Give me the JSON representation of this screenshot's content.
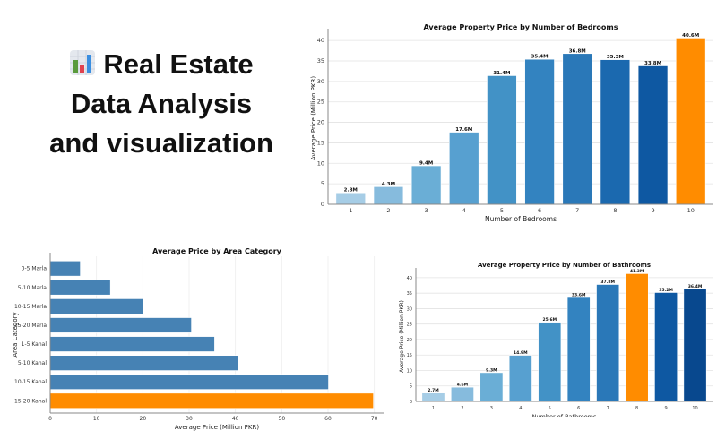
{
  "headline": {
    "icon": "bar-chart-emoji-icon",
    "line1": "Real Estate",
    "line2": "Data Analysis",
    "line3": "and visualization"
  },
  "chart_data": [
    {
      "id": "bedrooms",
      "type": "bar",
      "orientation": "vertical",
      "title": "Average Property Price by Number of Bedrooms",
      "xlabel": "Number of Bedrooms",
      "ylabel": "Average Price (Million PKR)",
      "categories": [
        "1",
        "2",
        "3",
        "4",
        "5",
        "6",
        "7",
        "8",
        "9",
        "10"
      ],
      "values": [
        2.8,
        4.3,
        9.4,
        17.6,
        31.4,
        35.4,
        36.8,
        35.3,
        33.8,
        40.6
      ],
      "data_labels": [
        "2.8M",
        "4.3M",
        "9.4M",
        "17.6M",
        "31.4M",
        "35.4M",
        "36.8M",
        "35.3M",
        "33.8M",
        "40.6M"
      ],
      "ylim": [
        0,
        42
      ],
      "yticks": [
        0,
        5,
        10,
        15,
        20,
        25,
        30,
        35,
        40
      ],
      "grid": true,
      "colors": [
        "#a6cde6",
        "#86bbdd",
        "#6aaed6",
        "#57a0d0",
        "#4292c6",
        "#3383c0",
        "#2a78b8",
        "#1b69af",
        "#0e58a2",
        "#ff8c00"
      ],
      "highlight_color": "#ff8c00"
    },
    {
      "id": "area",
      "type": "bar",
      "orientation": "horizontal",
      "title": "Average Price by Area Category",
      "xlabel": "Average Price (Million PKR)",
      "ylabel": "Area Category",
      "categories": [
        "0-5 Marla",
        "5-10 Marla",
        "10-15 Marla",
        "15-20 Marla",
        "1-5 Kanal",
        "5-10 Kanal",
        "10-15 Kanal",
        "15-20 Kanal"
      ],
      "values": [
        6.5,
        13,
        20.1,
        30.5,
        35.5,
        40.6,
        60.1,
        69.8
      ],
      "xlim": [
        0,
        72
      ],
      "xticks": [
        0,
        10,
        20,
        30,
        40,
        50,
        60,
        70
      ],
      "grid": true,
      "colors": [
        "#4682b4",
        "#4682b4",
        "#4682b4",
        "#4682b4",
        "#4682b4",
        "#4682b4",
        "#4682b4",
        "#ff8c00"
      ],
      "highlight_color": "#ff8c00"
    },
    {
      "id": "bathrooms",
      "type": "bar",
      "orientation": "vertical",
      "title": "Average Property Price by Number of Bathrooms",
      "xlabel": "Number of Bathrooms",
      "ylabel": "Average Price (Million PKR)",
      "categories": [
        "1",
        "2",
        "3",
        "4",
        "5",
        "6",
        "7",
        "8",
        "9",
        "10"
      ],
      "values": [
        2.7,
        4.6,
        9.3,
        14.9,
        25.6,
        33.6,
        37.8,
        41.3,
        35.2,
        36.4
      ],
      "data_labels": [
        "2.7M",
        "4.6M",
        "9.3M",
        "14.9M",
        "25.6M",
        "33.6M",
        "37.8M",
        "41.3M",
        "35.2M",
        "36.4M"
      ],
      "ylim": [
        0,
        42
      ],
      "yticks": [
        0,
        5,
        10,
        15,
        20,
        25,
        30,
        35,
        40
      ],
      "grid": true,
      "colors": [
        "#a6cde6",
        "#86bbdd",
        "#6aaed6",
        "#57a0d0",
        "#4292c6",
        "#3383c0",
        "#2a78b8",
        "#ff8c00",
        "#0e58a2",
        "#08488e"
      ],
      "highlight_color": "#ff8c00"
    }
  ]
}
